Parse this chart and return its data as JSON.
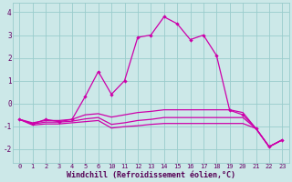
{
  "background_color": "#cce8e8",
  "grid_color": "#99cccc",
  "line_color": "#cc00aa",
  "title": "Windchill (Refroidissement éolien,°C)",
  "ylim": [
    -2.6,
    4.4
  ],
  "yticks": [
    -2,
    -1,
    0,
    1,
    2,
    3,
    4
  ],
  "xlabels": [
    "0",
    "1",
    "2",
    "3",
    "4",
    "5",
    "6",
    "10",
    "11",
    "12",
    "13",
    "14",
    "15",
    "16",
    "17",
    "18",
    "19",
    "20",
    "21",
    "22",
    "23"
  ],
  "n_points": 21,
  "line1": [
    -0.7,
    -0.9,
    -0.7,
    -0.8,
    -0.7,
    0.3,
    1.4,
    0.4,
    1.0,
    2.9,
    3.0,
    3.8,
    3.5,
    2.8,
    3.0,
    2.1,
    -0.3,
    -0.5,
    -1.1,
    -1.9,
    -1.6
  ],
  "line2": [
    -0.7,
    -0.85,
    -0.75,
    -0.75,
    -0.7,
    -0.5,
    -0.45,
    -0.6,
    -0.5,
    -0.4,
    -0.35,
    -0.28,
    -0.28,
    -0.28,
    -0.28,
    -0.28,
    -0.28,
    -0.4,
    -1.1,
    -1.9,
    -1.6
  ],
  "line3": [
    -0.7,
    -0.9,
    -0.82,
    -0.82,
    -0.78,
    -0.68,
    -0.62,
    -0.92,
    -0.85,
    -0.75,
    -0.7,
    -0.62,
    -0.62,
    -0.62,
    -0.62,
    -0.62,
    -0.62,
    -0.62,
    -1.1,
    -1.9,
    -1.6
  ],
  "line4": [
    -0.7,
    -0.95,
    -0.9,
    -0.9,
    -0.85,
    -0.8,
    -0.75,
    -1.08,
    -1.02,
    -0.98,
    -0.92,
    -0.88,
    -0.88,
    -0.88,
    -0.88,
    -0.88,
    -0.88,
    -0.88,
    -1.1,
    -1.9,
    -1.6
  ]
}
